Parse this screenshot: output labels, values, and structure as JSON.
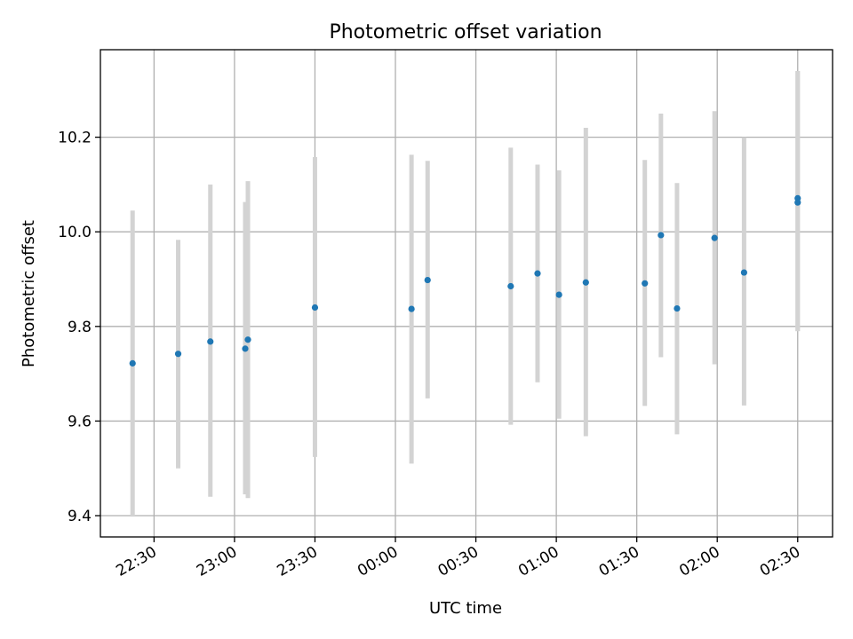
{
  "chart_data": {
    "type": "scatter",
    "title": "Photometric offset variation",
    "xlabel": "UTC time",
    "ylabel": "Photometric offset",
    "x_ticks": [
      "22:30",
      "23:00",
      "23:30",
      "00:00",
      "00:30",
      "01:00",
      "01:30",
      "02:00",
      "02:30"
    ],
    "y_ticks": [
      "9.4",
      "9.6",
      "9.8",
      "10.0",
      "10.2"
    ],
    "xlim": [
      "22:10",
      "02:43"
    ],
    "ylim": [
      9.355,
      10.385
    ],
    "grid": true,
    "colors": {
      "points": "#1f77b4",
      "errorbars": "#d3d3d3",
      "grid": "#b0b0b0"
    },
    "points": [
      {
        "x": "22:22",
        "y": 9.722,
        "ylow": 9.4,
        "yhigh": 10.045
      },
      {
        "x": "22:39",
        "y": 9.742,
        "ylow": 9.5,
        "yhigh": 9.983
      },
      {
        "x": "22:51",
        "y": 9.768,
        "ylow": 9.44,
        "yhigh": 10.1
      },
      {
        "x": "23:04",
        "y": 9.753,
        "ylow": 9.445,
        "yhigh": 10.063
      },
      {
        "x": "23:05",
        "y": 9.772,
        "ylow": 9.437,
        "yhigh": 10.107
      },
      {
        "x": "23:30",
        "y": 9.84,
        "ylow": 9.524,
        "yhigh": 10.158
      },
      {
        "x": "00:06",
        "y": 9.837,
        "ylow": 9.51,
        "yhigh": 10.163
      },
      {
        "x": "00:12",
        "y": 9.898,
        "ylow": 9.648,
        "yhigh": 10.15
      },
      {
        "x": "00:43",
        "y": 9.885,
        "ylow": 9.592,
        "yhigh": 10.178
      },
      {
        "x": "00:53",
        "y": 9.912,
        "ylow": 9.682,
        "yhigh": 10.142
      },
      {
        "x": "01:01",
        "y": 9.867,
        "ylow": 9.605,
        "yhigh": 10.13
      },
      {
        "x": "01:11",
        "y": 9.893,
        "ylow": 9.568,
        "yhigh": 10.22
      },
      {
        "x": "01:33",
        "y": 9.891,
        "ylow": 9.632,
        "yhigh": 10.152
      },
      {
        "x": "01:39",
        "y": 9.993,
        "ylow": 9.735,
        "yhigh": 10.25
      },
      {
        "x": "01:45",
        "y": 9.838,
        "ylow": 9.572,
        "yhigh": 10.103
      },
      {
        "x": "01:59",
        "y": 9.987,
        "ylow": 9.72,
        "yhigh": 10.255
      },
      {
        "x": "02:10",
        "y": 9.914,
        "ylow": 9.633,
        "yhigh": 10.2
      },
      {
        "x": "02:30",
        "y": 10.071,
        "ylow": 9.79,
        "yhigh": 10.34
      },
      {
        "x": "02:30",
        "y": 10.062,
        "ylow": 9.79,
        "yhigh": 10.34
      }
    ]
  }
}
